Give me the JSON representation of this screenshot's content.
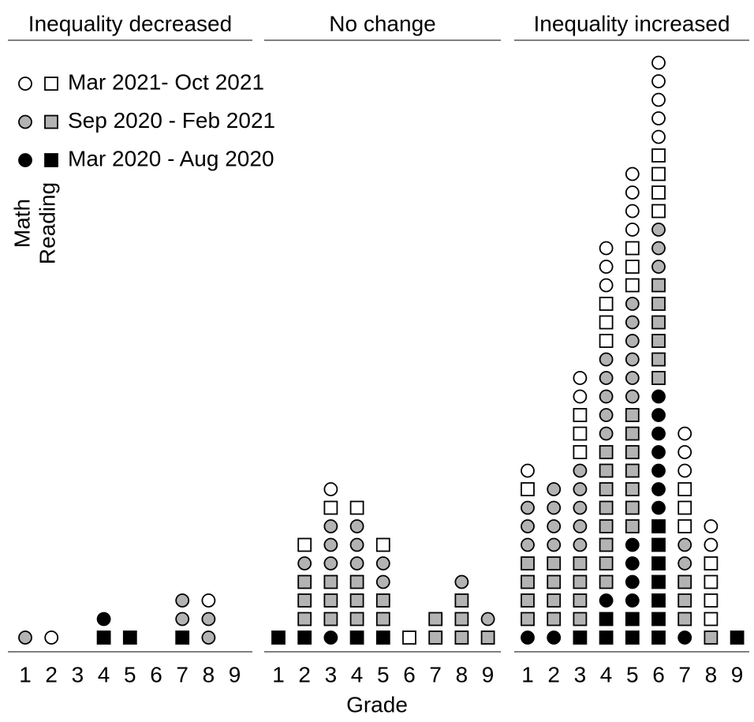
{
  "chart_data": {
    "type": "dotplot",
    "x_label": "Grade",
    "categories": [
      "1",
      "2",
      "3",
      "4",
      "5",
      "6",
      "7",
      "8",
      "9"
    ],
    "subjects": [
      "Math",
      "Reading"
    ],
    "periods": [
      {
        "name": "Mar 2021- Oct 2021",
        "color": "#ffffff"
      },
      {
        "name": "Sep 2020 - Feb 2021",
        "color": "#b3b3b3"
      },
      {
        "name": "Mar 2020 - Aug 2020",
        "color": "#000000"
      }
    ],
    "panels": [
      {
        "title": "Inequality decreased",
        "math": [
          [
            0,
            1,
            0,
            0,
            0,
            0,
            0,
            1,
            0
          ],
          [
            1,
            0,
            0,
            0,
            0,
            0,
            2,
            2,
            0
          ],
          [
            0,
            0,
            0,
            1,
            0,
            0,
            0,
            0,
            0
          ]
        ],
        "reading": [
          [
            0,
            0,
            0,
            0,
            0,
            0,
            0,
            0,
            0
          ],
          [
            0,
            0,
            0,
            0,
            0,
            0,
            0,
            0,
            0
          ],
          [
            0,
            0,
            0,
            1,
            1,
            0,
            1,
            0,
            0
          ]
        ]
      },
      {
        "title": "No change",
        "math": [
          [
            0,
            0,
            1,
            0,
            0,
            0,
            0,
            0,
            0
          ],
          [
            0,
            1,
            3,
            3,
            2,
            0,
            0,
            1,
            1
          ],
          [
            0,
            0,
            1,
            0,
            0,
            0,
            0,
            0,
            0
          ]
        ],
        "reading": [
          [
            0,
            1,
            1,
            1,
            1,
            1,
            0,
            0,
            0
          ],
          [
            0,
            3,
            3,
            3,
            2,
            0,
            2,
            3,
            1
          ],
          [
            1,
            1,
            0,
            1,
            1,
            0,
            0,
            0,
            0
          ]
        ]
      },
      {
        "title": "Inequality increased",
        "math": [
          [
            1,
            0,
            2,
            3,
            4,
            5,
            3,
            2,
            0
          ],
          [
            3,
            4,
            5,
            5,
            6,
            3,
            2,
            0,
            0
          ],
          [
            1,
            1,
            0,
            1,
            4,
            7,
            1,
            0,
            0
          ]
        ],
        "reading": [
          [
            1,
            0,
            3,
            3,
            3,
            4,
            3,
            4,
            0
          ],
          [
            4,
            4,
            4,
            8,
            7,
            6,
            3,
            1,
            0
          ],
          [
            0,
            0,
            1,
            2,
            2,
            7,
            0,
            0,
            1
          ]
        ]
      }
    ]
  }
}
